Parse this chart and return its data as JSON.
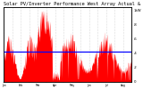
{
  "title": "Solar PV/Inverter Performance West Array Actual & Average Power Output",
  "title_fontsize": 3.8,
  "bg_color": "#ffffff",
  "plot_bg_color": "#ffffff",
  "bar_color": "#ff0000",
  "avg_line_color": "#0000ff",
  "avg_line_value": 0.42,
  "ylim": [
    0,
    1.05
  ],
  "grid_color": "#bbbbbb",
  "n_bars": 365,
  "seed": 7
}
